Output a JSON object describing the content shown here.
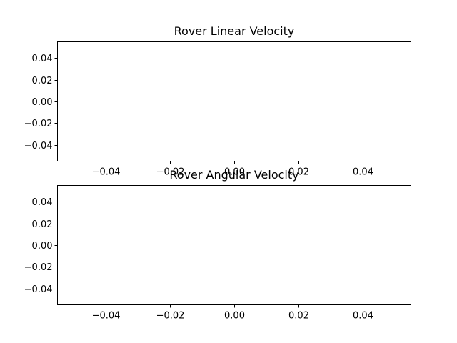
{
  "chart_data": [
    {
      "type": "line",
      "title": "Rover Linear Velocity",
      "xlabel": "",
      "ylabel": "",
      "x": [],
      "series": [],
      "xlim": [
        -0.055,
        0.055
      ],
      "ylim": [
        -0.055,
        0.055
      ],
      "xticks": [
        -0.04,
        -0.02,
        0.0,
        0.02,
        0.04
      ],
      "xtick_labels": [
        "−0.04",
        "−0.02",
        "0.00",
        "0.02",
        "0.04"
      ],
      "yticks": [
        0.04,
        0.02,
        0.0,
        -0.02,
        -0.04
      ],
      "ytick_labels": [
        "0.04",
        "0.02",
        "0.00",
        "−0.02",
        "−0.04"
      ],
      "grid": false
    },
    {
      "type": "line",
      "title": "Rover Angular Velocity",
      "xlabel": "",
      "ylabel": "",
      "x": [],
      "series": [],
      "xlim": [
        -0.055,
        0.055
      ],
      "ylim": [
        -0.055,
        0.055
      ],
      "xticks": [
        -0.04,
        -0.02,
        0.0,
        0.02,
        0.04
      ],
      "xtick_labels": [
        "−0.04",
        "−0.02",
        "0.00",
        "0.02",
        "0.04"
      ],
      "yticks": [
        0.04,
        0.02,
        0.0,
        -0.02,
        -0.04
      ],
      "ytick_labels": [
        "0.04",
        "0.02",
        "0.00",
        "−0.02",
        "−0.04"
      ],
      "grid": false
    }
  ]
}
